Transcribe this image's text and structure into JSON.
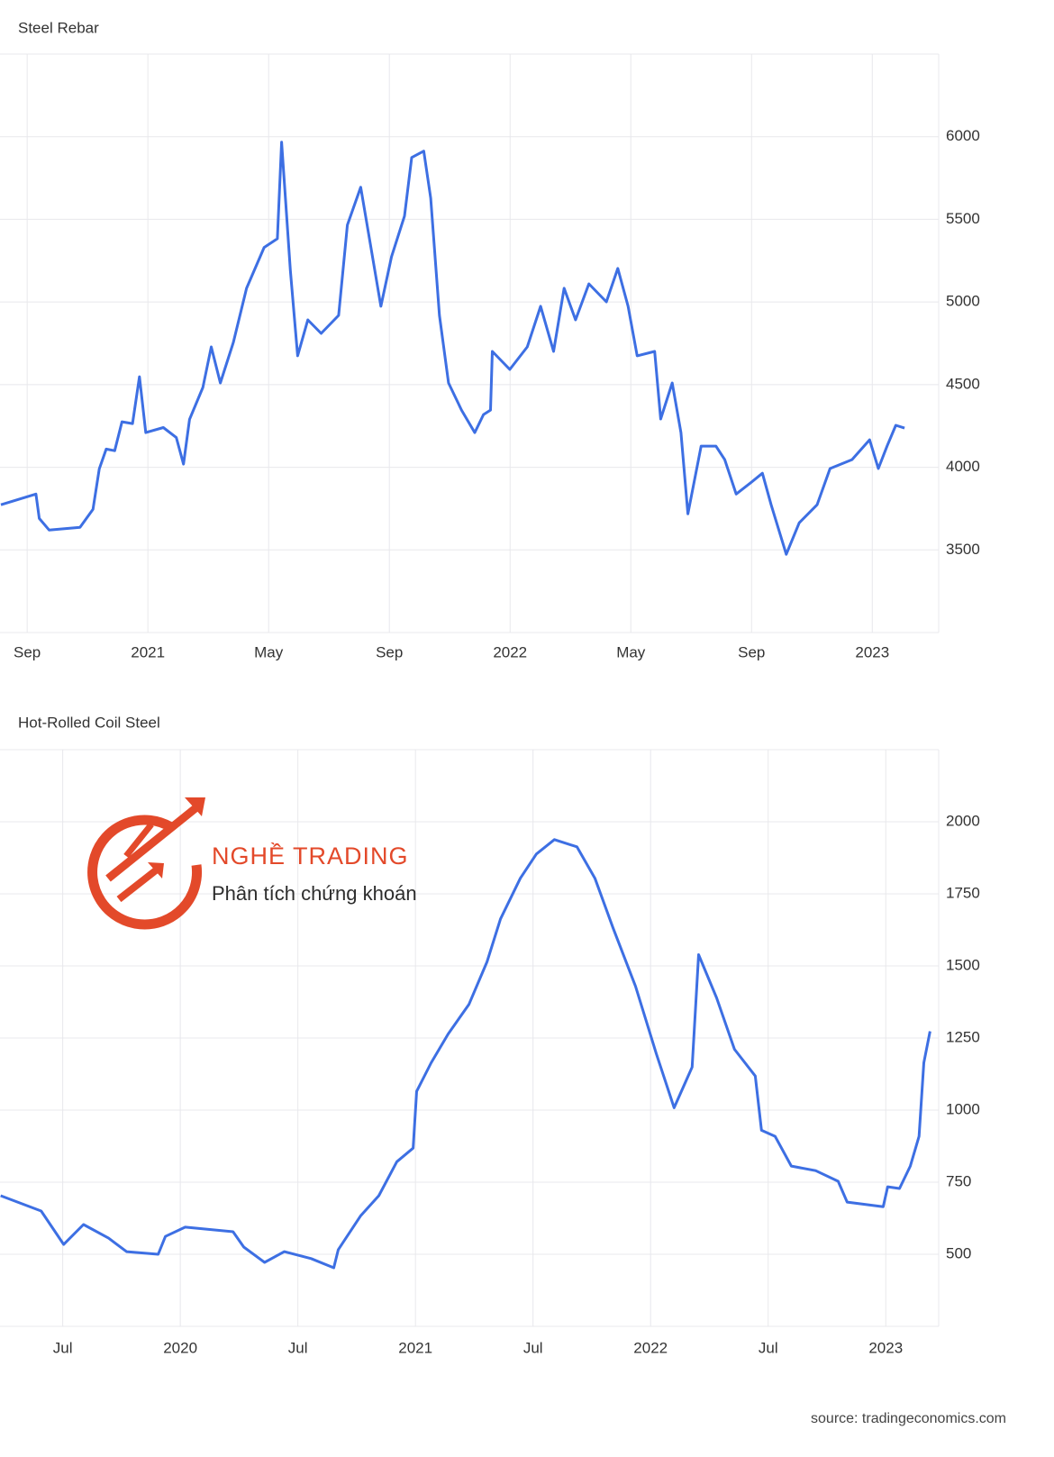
{
  "chart_data": [
    {
      "type": "line",
      "title": "Steel Rebar",
      "color": "#3d6fe3",
      "grid": true,
      "xlim": [
        19.1,
        50.2
      ],
      "xticks": [
        {
          "value": 20,
          "label": "Sep"
        },
        {
          "value": 24,
          "label": "2021"
        },
        {
          "value": 28,
          "label": "May"
        },
        {
          "value": 32,
          "label": "Sep"
        },
        {
          "value": 36,
          "label": "2022"
        },
        {
          "value": 40,
          "label": "May"
        },
        {
          "value": 44,
          "label": "Sep"
        },
        {
          "value": 48,
          "label": "2023"
        }
      ],
      "ylim": [
        3000,
        6500
      ],
      "yticks": [
        3500,
        4000,
        4500,
        5000,
        5500,
        6000
      ],
      "x": [
        19.13,
        20.29,
        20.4,
        20.73,
        21.75,
        22.18,
        22.39,
        22.62,
        22.9,
        23.14,
        23.49,
        23.72,
        23.93,
        24.51,
        24.94,
        25.18,
        25.38,
        25.82,
        26.1,
        26.4,
        26.83,
        27.27,
        27.85,
        28.29,
        28.43,
        28.72,
        28.96,
        29.3,
        29.74,
        30.32,
        30.61,
        31.05,
        31.34,
        31.72,
        32.07,
        32.5,
        32.74,
        33.14,
        33.37,
        33.66,
        33.96,
        34.39,
        34.83,
        35.12,
        35.35,
        35.41,
        35.99,
        36.57,
        37.01,
        37.44,
        37.79,
        38.17,
        38.61,
        39.19,
        39.57,
        39.91,
        40.21,
        40.79,
        40.99,
        41.37,
        41.66,
        41.89,
        42.33,
        42.82,
        43.11,
        43.49,
        43.99,
        44.36,
        44.65,
        45.15,
        45.58,
        46.17,
        46.6,
        47.33,
        47.91,
        48.2,
        48.49,
        48.78,
        49.07
      ],
      "values": [
        3773,
        3838,
        3690,
        3620,
        3636,
        3745,
        3990,
        4110,
        4100,
        4275,
        4264,
        4548,
        4210,
        4240,
        4180,
        4019,
        4290,
        4483,
        4728,
        4510,
        4755,
        5083,
        5330,
        5383,
        5967,
        5192,
        4674,
        4892,
        4810,
        4919,
        5465,
        5694,
        5383,
        4974,
        5274,
        5520,
        5874,
        5913,
        5629,
        4919,
        4510,
        4346,
        4210,
        4319,
        4346,
        4701,
        4592,
        4728,
        4974,
        4701,
        5083,
        4892,
        5110,
        5001,
        5203,
        4974,
        4674,
        4701,
        4292,
        4510,
        4210,
        3718,
        4128,
        4128,
        4046,
        3838,
        3909,
        3964,
        3773,
        3473,
        3664,
        3773,
        3992,
        4046,
        4166,
        3992,
        4128,
        4254,
        4237
      ]
    },
    {
      "type": "line",
      "title": "Hot-Rolled Coil Steel",
      "color": "#3d6fe3",
      "grid": true,
      "xlim": [
        2.8,
        50.7
      ],
      "xticks": [
        {
          "value": 6,
          "label": "Jul"
        },
        {
          "value": 12,
          "label": "2020"
        },
        {
          "value": 18,
          "label": "Jul"
        },
        {
          "value": 24,
          "label": "2021"
        },
        {
          "value": 30,
          "label": "Jul"
        },
        {
          "value": 36,
          "label": "2022"
        },
        {
          "value": 42,
          "label": "Jul"
        },
        {
          "value": 48,
          "label": "2023"
        }
      ],
      "ylim": [
        250,
        2250
      ],
      "yticks": [
        500,
        750,
        1000,
        1250,
        1500,
        1750,
        2000
      ],
      "x": [
        2.83,
        4.9,
        6.05,
        7.06,
        8.34,
        9.26,
        10.87,
        11.24,
        12.25,
        14.69,
        15.24,
        16.3,
        17.31,
        18.68,
        19.83,
        20.06,
        21.21,
        22.13,
        23.05,
        23.88,
        24.06,
        24.8,
        25.67,
        26.73,
        27.65,
        28.34,
        29.35,
        30.17,
        31.09,
        32.24,
        33.16,
        34.08,
        35.23,
        36.29,
        37.2,
        38.12,
        38.45,
        39.37,
        40.28,
        41.34,
        41.66,
        42.35,
        43.18,
        44.42,
        45.57,
        46.03,
        47.87,
        48.1,
        48.7,
        49.25,
        49.7,
        49.94,
        50.26
      ],
      "values": [
        703,
        650,
        534,
        603,
        556,
        509,
        500,
        562,
        594,
        578,
        525,
        472,
        509,
        485,
        453,
        516,
        634,
        703,
        821,
        868,
        1065,
        1164,
        1264,
        1367,
        1514,
        1663,
        1804,
        1888,
        1938,
        1913,
        1804,
        1632,
        1429,
        1196,
        1008,
        1149,
        1539,
        1389,
        1211,
        1118,
        930,
        909,
        806,
        790,
        753,
        681,
        665,
        734,
        728,
        806,
        909,
        1164,
        1273
      ]
    }
  ],
  "watermark": {
    "brand": "NGHỀ TRADING",
    "tagline": "Phân tích chứng khoán"
  },
  "source": "source: tradingeconomics.com"
}
